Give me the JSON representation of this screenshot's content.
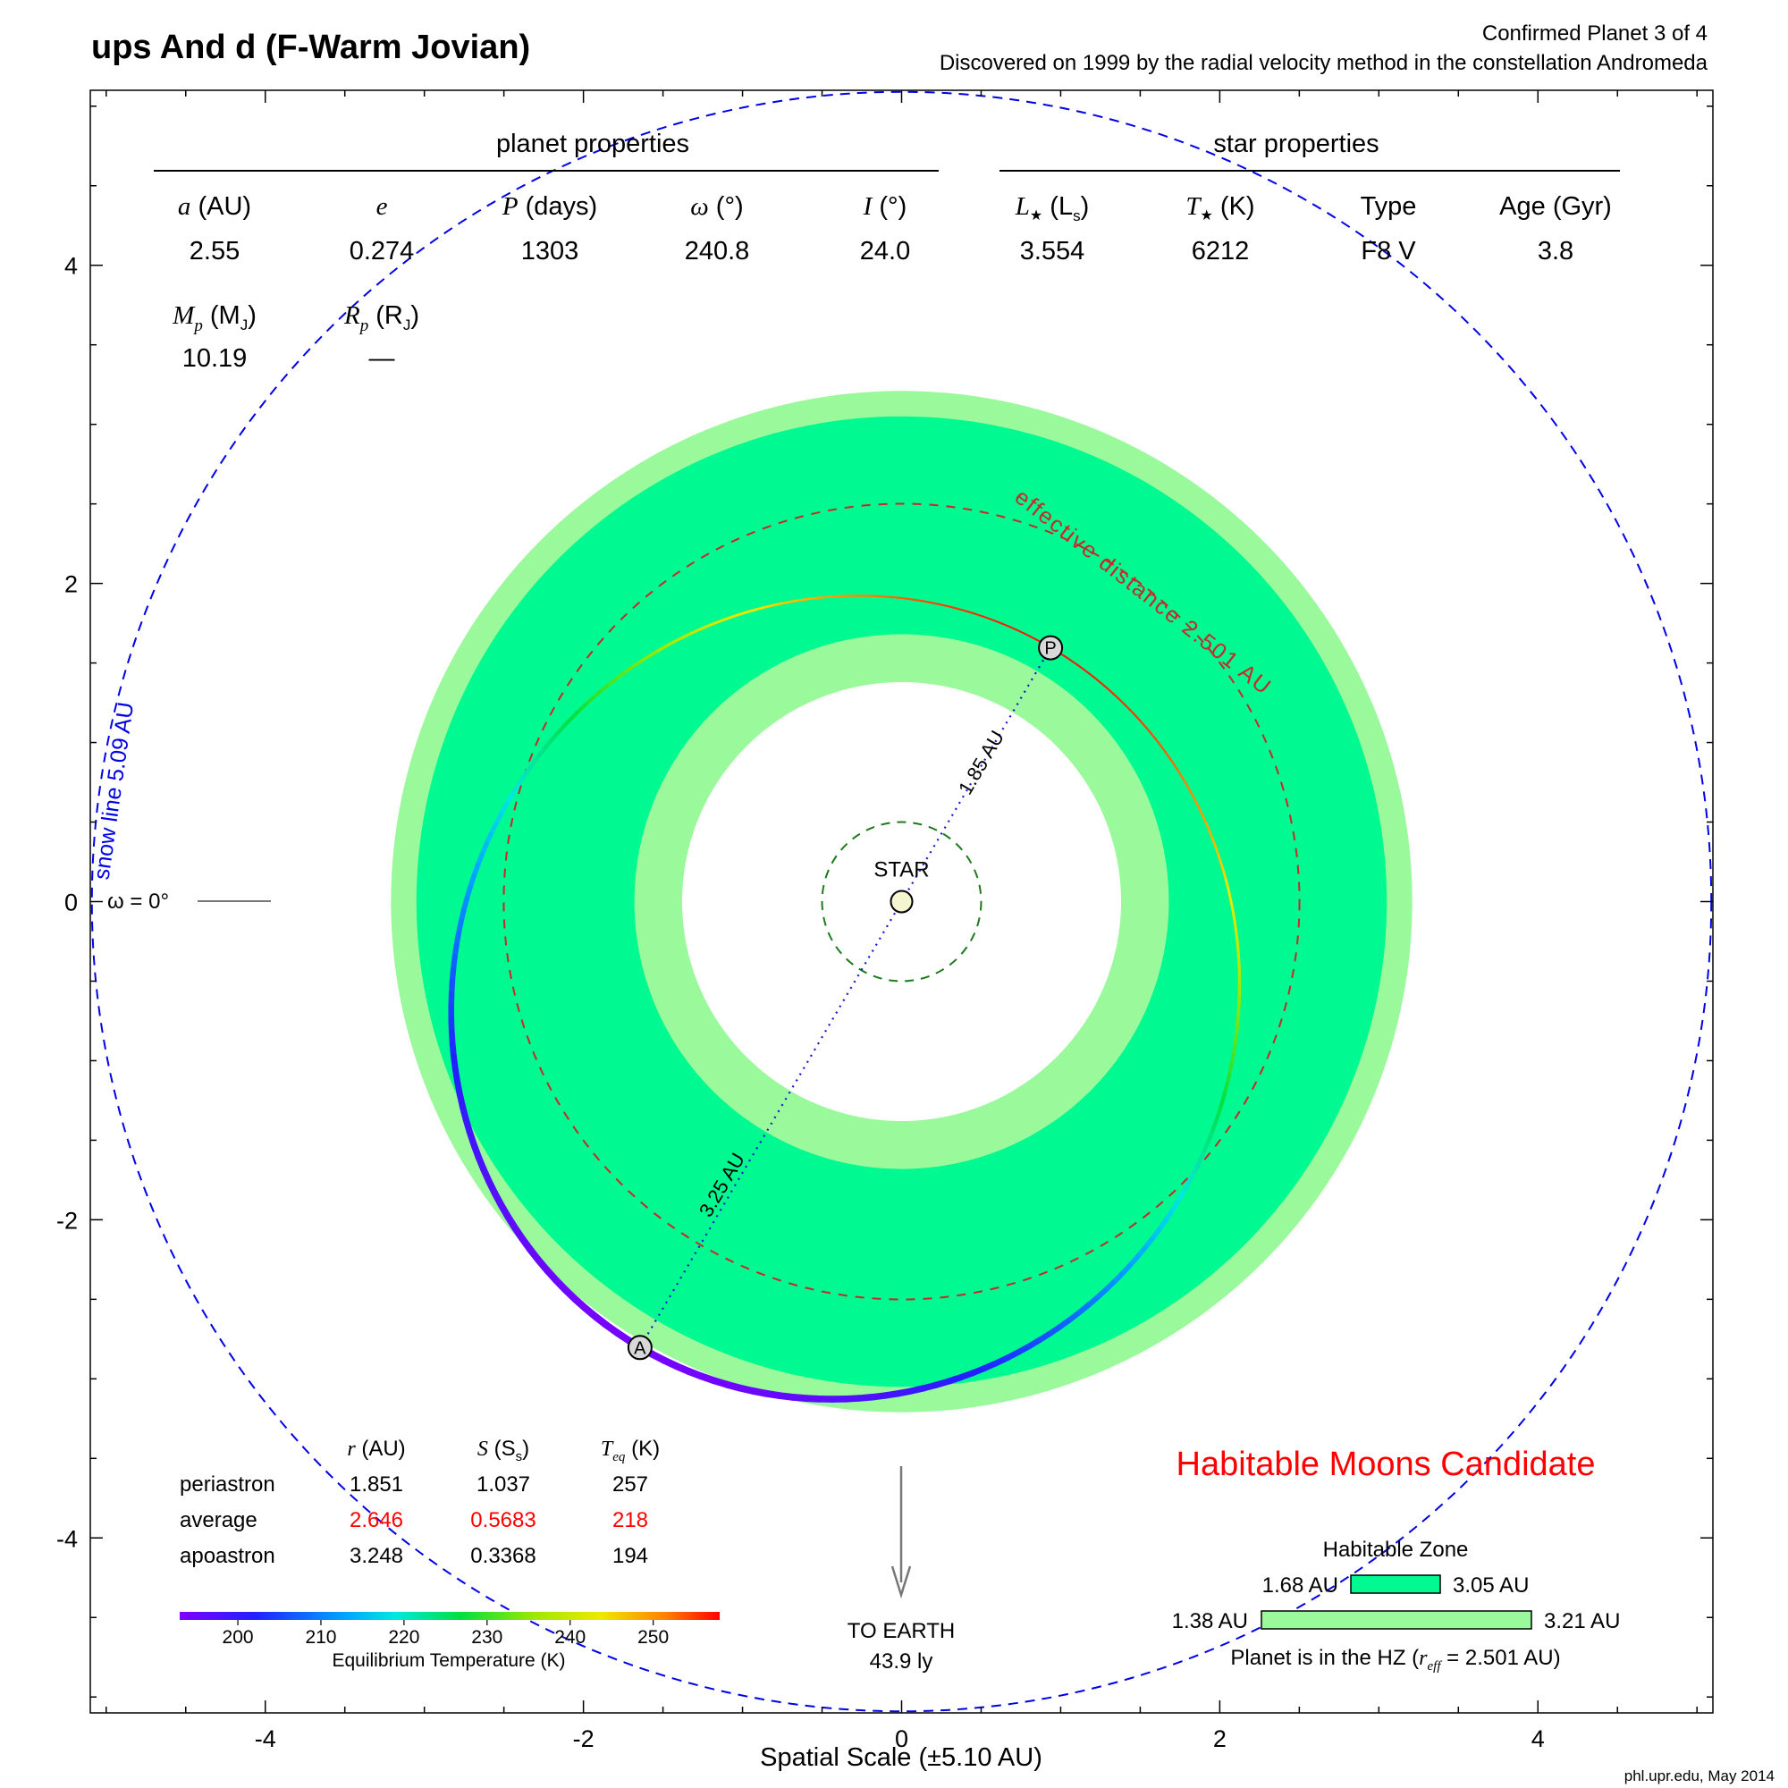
{
  "title": "ups And d (F-Warm Jovian)",
  "header_right": {
    "line1": "Confirmed Planet 3 of 4",
    "line2": "Discovered on 1999 by the radial velocity method in the constellation Andromeda"
  },
  "planet_properties": {
    "heading": "planet properties",
    "columns": [
      {
        "sym": "a",
        "unit": " (AU)",
        "value": "2.55"
      },
      {
        "sym": "e",
        "unit": "",
        "value": "0.274"
      },
      {
        "sym": "P",
        "unit": " (days)",
        "value": "1303"
      },
      {
        "sym": "ω",
        "unit": " (°)",
        "value": "240.8"
      },
      {
        "sym": "I",
        "unit": " (°)",
        "value": "24.0"
      }
    ],
    "mass_label_sym": "M",
    "mass_label_sub": "p",
    "mass_label_unit": " (M",
    "mass_label_unit_sub": "J",
    "mass_label_close": ")",
    "mass_value": "10.19",
    "radius_label_sym": "R",
    "radius_label_sub": "p",
    "radius_label_unit": " (R",
    "radius_label_unit_sub": "J",
    "radius_label_close": ")",
    "radius_value": "—"
  },
  "star_properties": {
    "heading": "star properties",
    "lum_sym": "L",
    "lum_unit": " (L",
    "lum_unit_sub": "s",
    "lum_close": ")",
    "lum_value": "3.554",
    "temp_sym": "T",
    "temp_unit": " (K)",
    "temp_value": "6212",
    "type_label": "Type",
    "type_value": "F8 V",
    "age_label": "Age (Gyr)",
    "age_value": "3.8"
  },
  "orbit_labels": {
    "star": "STAR",
    "periastron_marker": "P",
    "apoastron_marker": "A",
    "periastron_dist": "1.85 AU",
    "apoastron_dist": "3.25 AU",
    "effective_distance": "effective distance 2.501 AU",
    "snow_line": "snow line 5.09 AU",
    "omega_zero": "ω = 0°"
  },
  "earth": {
    "label": "TO EARTH",
    "distance": "43.9 ly"
  },
  "candidate": "Habitable Moons Candidate",
  "orbit_table": {
    "headers": [
      {
        "sym": "r",
        "unit": " (AU)"
      },
      {
        "sym": "S",
        "unit": " (S",
        "sub": "s",
        "close": ")"
      },
      {
        "sym": "T",
        "sub_sym": "eq",
        "unit": " (K)"
      }
    ],
    "rows": [
      {
        "label": "periastron",
        "r": "1.851",
        "S": "1.037",
        "T": "257",
        "highlight": false
      },
      {
        "label": "average",
        "r": "2.646",
        "S": "0.5683",
        "T": "218",
        "highlight": true
      },
      {
        "label": "apoastron",
        "r": "3.248",
        "S": "0.3368",
        "T": "194",
        "highlight": false
      }
    ]
  },
  "colorbar": {
    "ticks": [
      "200",
      "210",
      "220",
      "230",
      "240",
      "250"
    ],
    "label": "Equilibrium Temperature (K)",
    "tmin": 193,
    "tmax": 258
  },
  "habitable_zone": {
    "title": "Habitable Zone",
    "inner_bar": {
      "lo_label": "1.68 AU",
      "hi_label": "3.05 AU"
    },
    "outer_bar": {
      "lo_label": "1.38 AU",
      "hi_label": "3.21 AU"
    },
    "status_prefix": "Planet is in the HZ (",
    "status_sym": "r",
    "status_sub": "eff",
    "status_suffix": " = 2.501 AU)"
  },
  "axes": {
    "x_ticks": [
      "-4",
      "-2",
      "0",
      "2",
      "4"
    ],
    "y_ticks": [
      "4",
      "2",
      "0",
      "-2",
      "-4"
    ],
    "x_label": "Spatial Scale (±5.10 AU)"
  },
  "credit": "phl.upr.edu, May 2014",
  "chart_data": {
    "type": "scatter",
    "title": "ups And d (F-Warm Jovian)",
    "xlabel": "Spatial Scale (±5.10 AU)",
    "xlim": [
      -5.1,
      5.1
    ],
    "ylim": [
      -5.1,
      5.1
    ],
    "orbit": {
      "a_au": 2.55,
      "e": 0.274,
      "omega_deg": 240.8
    },
    "habitable_zone_au": {
      "conservative": [
        1.68,
        3.05
      ],
      "optimistic": [
        1.38,
        3.21
      ]
    },
    "effective_distance_au": 2.501,
    "snow_line_au": 5.09,
    "star_zone_au": 0.5,
    "periastron_au": 1.85,
    "apoastron_au": 3.25,
    "colors": {
      "hz_conservative": "#00f990",
      "hz_optimistic": "#9af99a",
      "snow_line": "#0000e6",
      "effective_distance": "#c82828",
      "candidate": "#ff0000"
    }
  }
}
